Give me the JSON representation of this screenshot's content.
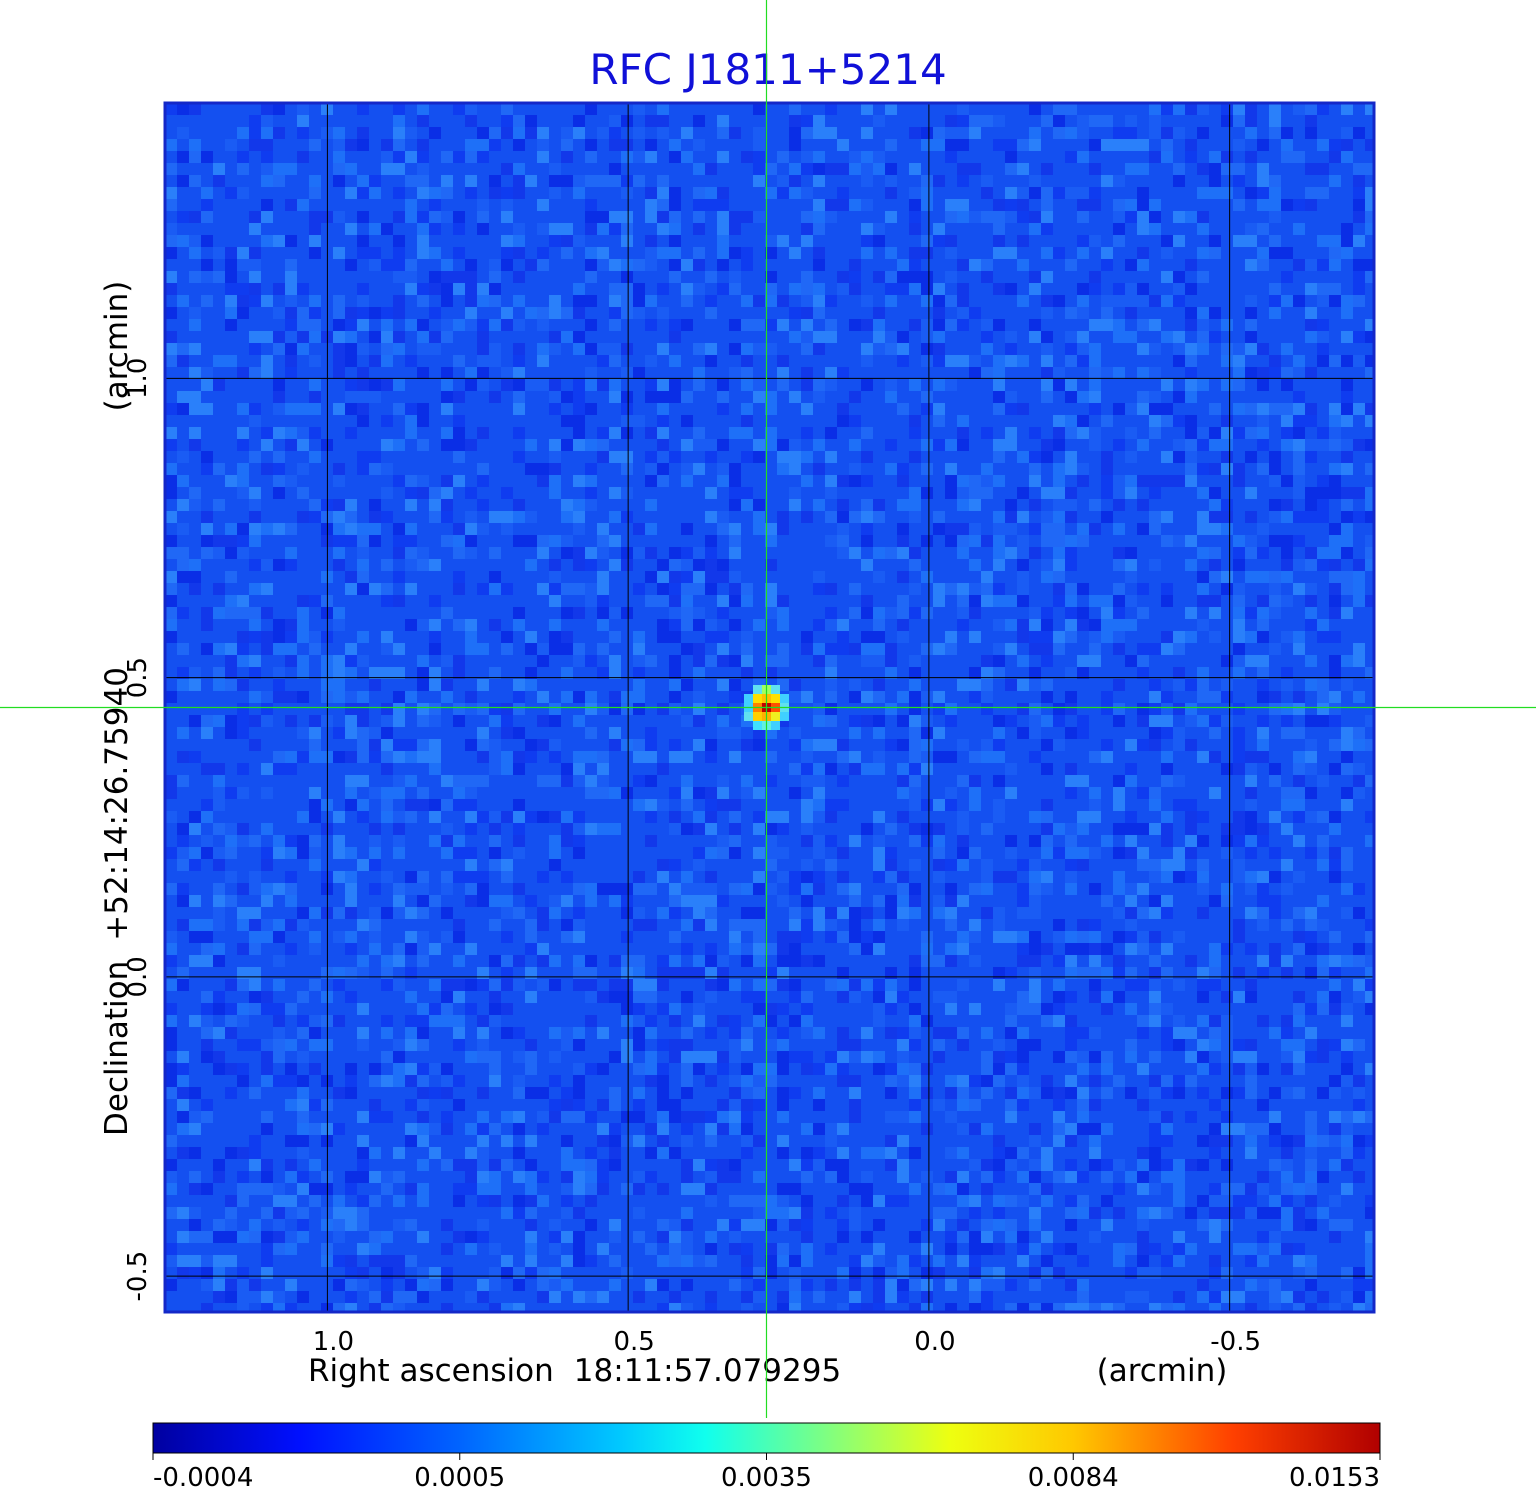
{
  "chart_data": {
    "type": "heatmap",
    "title": "RFC J1811+5214",
    "xlabel_name": "Right ascension",
    "xlabel_value": "18:11:57.079295",
    "xlabel_unit": "(arcmin)",
    "ylabel_name": "Declination",
    "ylabel_value": "+52:14:26.75940",
    "ylabel_unit": "(arcmin)",
    "x_ticks": [
      "1.0",
      "0.5",
      "0.0",
      "-0.5"
    ],
    "x_tick_values": [
      1.0,
      0.5,
      0.0,
      -0.5
    ],
    "y_ticks": [
      "1.0",
      "0.5",
      "0.0",
      "-0.5"
    ],
    "y_tick_values": [
      1.0,
      0.5,
      0.0,
      -0.5
    ],
    "xlim": [
      1.27,
      -0.74
    ],
    "ylim": [
      -0.56,
      1.46
    ],
    "grid": true,
    "crosshair": {
      "x": 0.27,
      "y": 0.45
    },
    "peak": {
      "x": 0.27,
      "y": 0.45,
      "value": 0.0153
    },
    "colormap": "jet",
    "colorbar_ticks": [
      "-0.0004",
      "0.0005",
      "0.0035",
      "0.0084",
      "0.0153"
    ],
    "colorbar_tick_values": [
      -0.0004,
      0.0005,
      0.0035,
      0.0084,
      0.0153
    ]
  },
  "colors": {
    "title": "#1010d8",
    "frame": "#1428c8",
    "grid": "#000000",
    "crosshair": "#22dd22",
    "background_map": "#1450f0"
  }
}
